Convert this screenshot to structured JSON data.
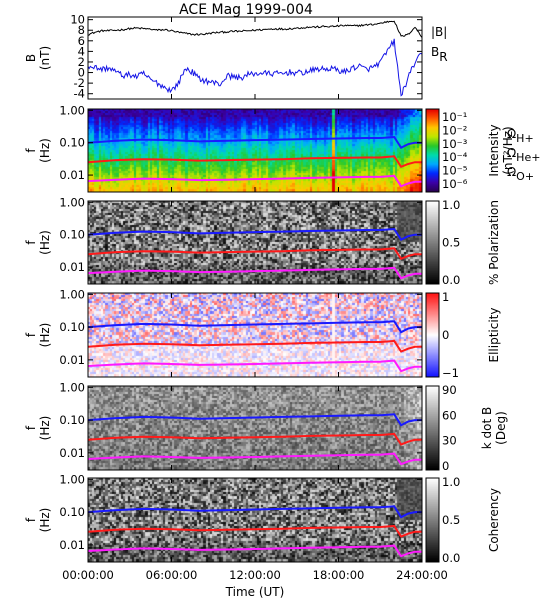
{
  "chart_data": {
    "type": "multi-panel",
    "title": "ACE Mag 1999-004",
    "xlabel": "Time (UT)",
    "x_ticks": [
      "00:00:00",
      "06:00:00",
      "12:00:00",
      "18:00:00",
      "24:00:00"
    ],
    "xlim_hours": [
      0,
      24
    ],
    "panels": [
      {
        "type": "line",
        "ylabel": [
          "B",
          "(nT)"
        ],
        "ylim": [
          -5,
          10.5
        ],
        "yticks": [
          "10",
          "8",
          "6",
          "4",
          "2",
          "0",
          "-2",
          "-4"
        ],
        "ytick_values": [
          10,
          8,
          6,
          4,
          2,
          0,
          -2,
          -4
        ],
        "series": [
          {
            "name": "|B|",
            "color": "#000000",
            "x": [
              0,
              0.5,
              1,
              1.5,
              2,
              2.5,
              3,
              3.5,
              4,
              4.5,
              5,
              5.5,
              6,
              6.5,
              7,
              7.5,
              8,
              8.5,
              9,
              9.5,
              10,
              10.5,
              11,
              11.5,
              12,
              12.5,
              13,
              13.5,
              14,
              14.5,
              15,
              15.5,
              16,
              16.5,
              17,
              17.5,
              18,
              18.5,
              19,
              19.5,
              20,
              20.5,
              21,
              21.5,
              22,
              22.5,
              23,
              23.5,
              24
            ],
            "values": [
              7.2,
              7.6,
              7.9,
              7.9,
              8.0,
              8.1,
              8.3,
              8.4,
              8.3,
              8.2,
              8.0,
              8.1,
              7.9,
              7.6,
              7.4,
              7.2,
              7.2,
              7.3,
              7.5,
              7.6,
              7.7,
              7.8,
              7.8,
              7.9,
              8.0,
              8.1,
              8.2,
              8.3,
              8.2,
              8.3,
              8.4,
              8.5,
              8.6,
              8.6,
              8.7,
              8.7,
              8.8,
              8.9,
              8.8,
              8.9,
              9.0,
              9.1,
              9.3,
              9.6,
              9.8,
              6.8,
              7.2,
              8.6,
              6.6
            ]
          },
          {
            "name": "B_R",
            "color": "#1414e6",
            "x": [
              0,
              0.5,
              1,
              1.5,
              2,
              2.5,
              3,
              3.5,
              4,
              4.5,
              5,
              5.5,
              6,
              6.5,
              7,
              7.5,
              8,
              8.5,
              9,
              9.5,
              10,
              10.5,
              11,
              11.5,
              12,
              12.5,
              13,
              13.5,
              14,
              14.5,
              15,
              15.5,
              16,
              16.5,
              17,
              17.5,
              18,
              18.5,
              19,
              19.5,
              20,
              20.5,
              21,
              21.5,
              22,
              22.5,
              23,
              23.5,
              24
            ],
            "values": [
              1.3,
              1.0,
              0.6,
              0.9,
              0.2,
              -0.6,
              -0.4,
              -0.8,
              -0.2,
              -1.4,
              -2.0,
              -2.8,
              -3.4,
              -2.0,
              0.8,
              0.1,
              -1.2,
              -1.6,
              -1.9,
              -2.2,
              -0.6,
              -0.8,
              -1.0,
              -0.4,
              -0.2,
              -0.1,
              -0.2,
              -0.2,
              -0.2,
              0.1,
              -0.1,
              0.0,
              0.3,
              0.7,
              0.6,
              0.8,
              0.4,
              0.1,
              0.9,
              1.2,
              0.6,
              1.0,
              1.9,
              4.0,
              6.0,
              -4.4,
              -1.0,
              2.0,
              3.5
            ]
          }
        ]
      },
      {
        "type": "heatmap",
        "ylabel": [
          "f",
          "(Hz)"
        ],
        "ylim": [
          0.003,
          1.1
        ],
        "log_y": true,
        "yticks": [
          "1.00",
          "0.10",
          "0.01"
        ],
        "colorbar": {
          "label": [
            "Intensity",
            "(nT²/Hz)"
          ],
          "scale": "log",
          "ticks": [
            "10⁻¹",
            "10⁻²",
            "10⁻³",
            "10⁻⁴",
            "10⁻⁵",
            "10⁻⁶"
          ],
          "colormap": "rainbow"
        }
      },
      {
        "type": "heatmap",
        "ylabel": [
          "f",
          "(Hz)"
        ],
        "ylim": [
          0.003,
          1.1
        ],
        "log_y": true,
        "yticks": [
          "1.00",
          "0.10",
          "0.01"
        ],
        "colorbar": {
          "label": [
            "% Polarization"
          ],
          "ticks": [
            "1.0",
            "0.5",
            "0.0"
          ],
          "range": [
            0,
            1
          ],
          "colormap": "gray"
        }
      },
      {
        "type": "heatmap",
        "ylabel": [
          "f",
          "(Hz)"
        ],
        "ylim": [
          0.003,
          1.1
        ],
        "log_y": true,
        "yticks": [
          "1.00",
          "0.10",
          "0.01"
        ],
        "colorbar": {
          "label": [
            "Ellipticity"
          ],
          "ticks": [
            "1",
            "0",
            "−1"
          ],
          "range": [
            -1,
            1
          ],
          "colormap": "blue-white-red"
        }
      },
      {
        "type": "heatmap",
        "ylabel": [
          "f",
          "(Hz)"
        ],
        "ylim": [
          0.003,
          1.1
        ],
        "log_y": true,
        "yticks": [
          "1.00",
          "0.10",
          "0.01"
        ],
        "colorbar": {
          "label": [
            "k dot B",
            "(Deg)"
          ],
          "ticks": [
            "90",
            "60",
            "30",
            "0"
          ],
          "range": [
            0,
            90
          ],
          "colormap": "gray"
        }
      },
      {
        "type": "heatmap",
        "ylabel": [
          "f",
          "(Hz)"
        ],
        "ylim": [
          0.003,
          1.1
        ],
        "log_y": true,
        "yticks": [
          "1.00",
          "0.10",
          "0.01"
        ],
        "colorbar": {
          "label": [
            "Coherency"
          ],
          "ticks": [
            "1.0",
            "0.5",
            "0.0"
          ],
          "range": [
            0,
            1
          ],
          "colormap": "gray"
        }
      }
    ],
    "gyrofrequency_lines": [
      {
        "name": "Ω_H+",
        "color": "#1a1aff",
        "x": [
          0,
          2,
          4,
          6,
          8,
          10,
          12,
          14,
          16,
          18,
          20,
          21,
          22,
          22.5,
          23,
          23.5,
          24
        ],
        "values": [
          0.1,
          0.115,
          0.125,
          0.12,
          0.11,
          0.115,
          0.12,
          0.125,
          0.13,
          0.135,
          0.14,
          0.14,
          0.15,
          0.07,
          0.09,
          0.1,
          0.1
        ]
      },
      {
        "name": "Ω_He+",
        "color": "#ff1a1a",
        "x": [
          0,
          2,
          4,
          6,
          8,
          10,
          12,
          14,
          16,
          18,
          20,
          21,
          22,
          22.5,
          23,
          23.5,
          24
        ],
        "values": [
          0.025,
          0.029,
          0.031,
          0.03,
          0.028,
          0.029,
          0.03,
          0.031,
          0.033,
          0.034,
          0.035,
          0.035,
          0.038,
          0.018,
          0.022,
          0.025,
          0.025
        ]
      },
      {
        "name": "Ω_O+",
        "color": "#ff1aff",
        "x": [
          0,
          2,
          4,
          6,
          8,
          10,
          12,
          14,
          16,
          18,
          20,
          21,
          22,
          22.5,
          23,
          23.5,
          24
        ],
        "values": [
          0.0065,
          0.0072,
          0.0078,
          0.0075,
          0.007,
          0.0072,
          0.0075,
          0.0078,
          0.0082,
          0.0085,
          0.0088,
          0.0088,
          0.0095,
          0.0045,
          0.0055,
          0.0062,
          0.0062
        ]
      }
    ],
    "legends": {
      "top_panel": [
        {
          "text": "|B|",
          "color": "#000000"
        },
        {
          "text": "B",
          "sub": "R",
          "color": "#1414e6"
        }
      ],
      "gyro": [
        {
          "text": "Ω",
          "sub": "H+",
          "color": "#1a1aff"
        },
        {
          "text": "Ω",
          "sub": "He+",
          "color": "#ff1a1a"
        },
        {
          "text": "Ω",
          "sub": "O+",
          "color": "#ff1aff"
        }
      ]
    }
  }
}
